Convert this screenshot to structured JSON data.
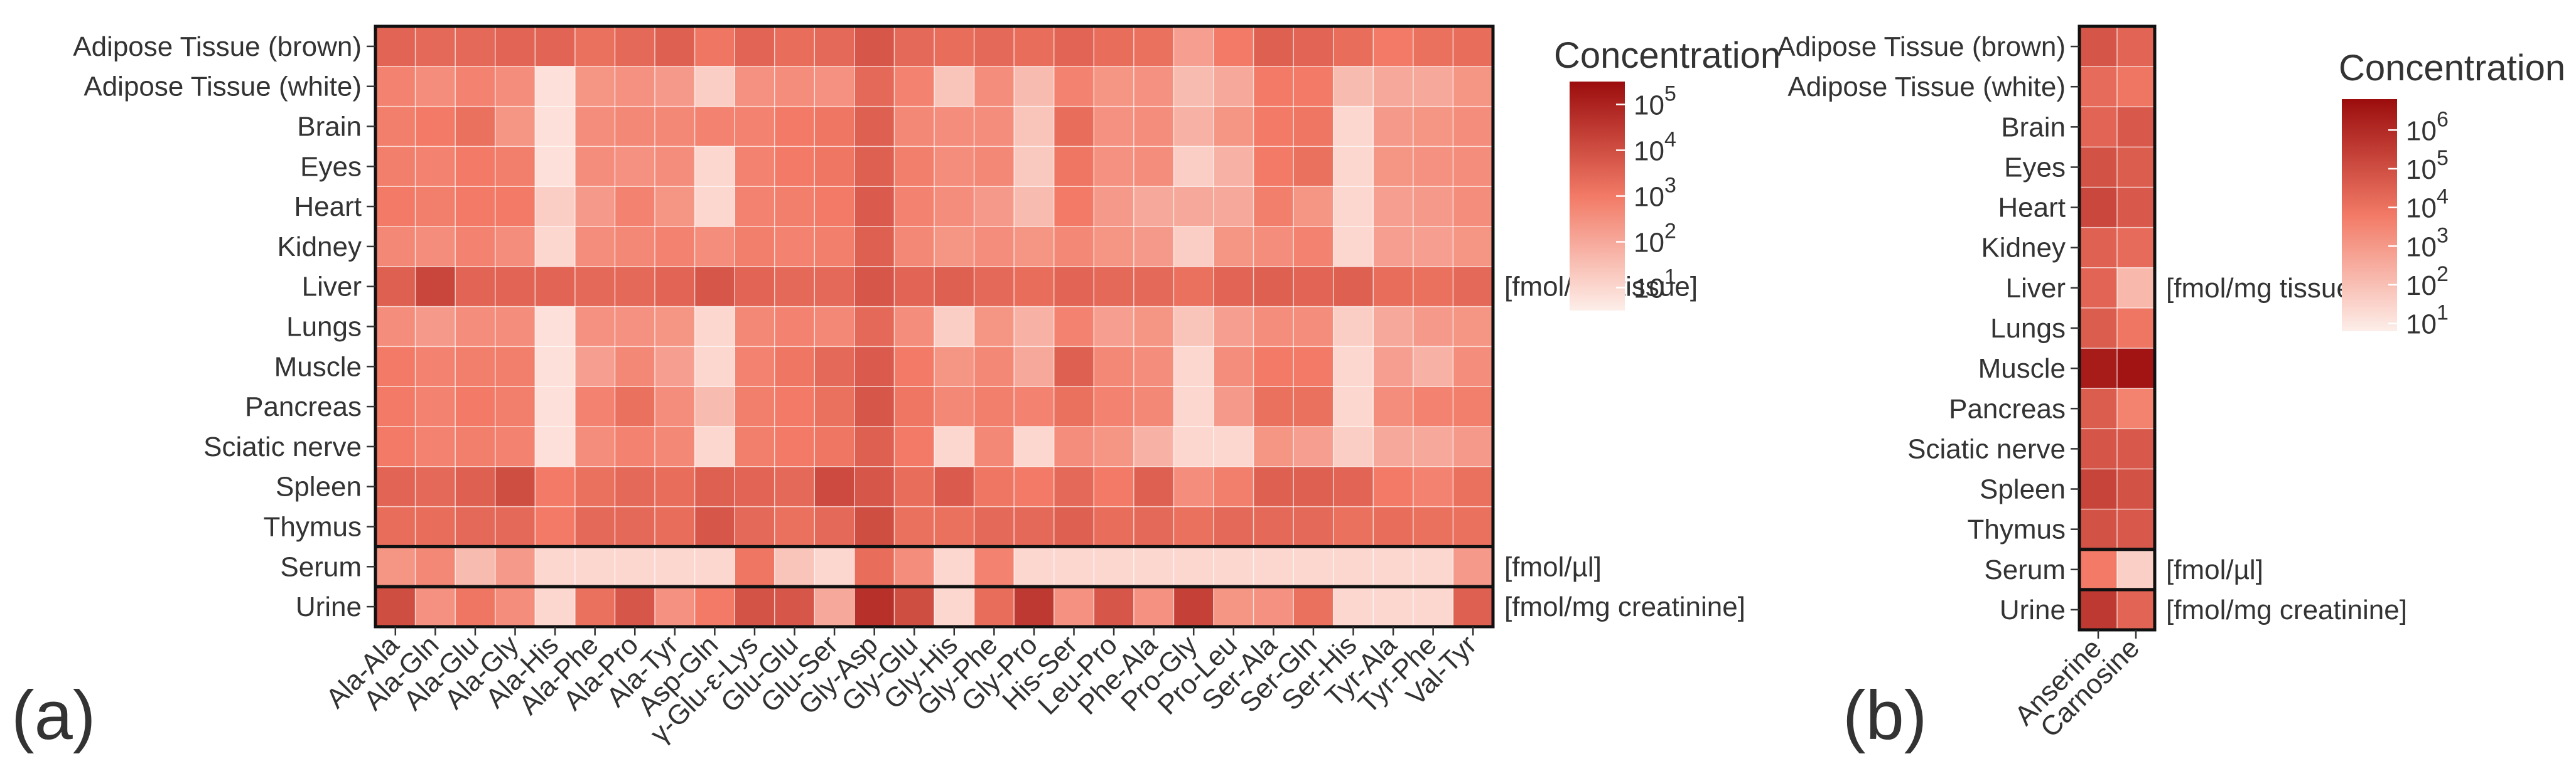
{
  "panel_labels": {
    "a": "(a)",
    "b": "(b)"
  },
  "colors": {
    "low": "#fdeee9",
    "mid": "#f27a66",
    "high": "#9b0d0d",
    "grid": "#ffffff",
    "frame": "#111111"
  },
  "chart_data": [
    {
      "type": "heatmap",
      "panel": "a",
      "title": "",
      "legend_title": "Concentration",
      "legend_ticks": [
        "10^1",
        "10^2",
        "10^3",
        "10^4",
        "10^5"
      ],
      "legend_range_log10": [
        0.5,
        5.5
      ],
      "rows": [
        "Adipose Tissue (brown)",
        "Adipose Tissue (white)",
        "Brain",
        "Eyes",
        "Heart",
        "Kidney",
        "Liver",
        "Lungs",
        "Muscle",
        "Pancreas",
        "Sciatic nerve",
        "Spleen",
        "Thymus",
        "Serum",
        "Urine"
      ],
      "columns": [
        "Ala-Ala",
        "Ala-Gln",
        "Ala-Glu",
        "Ala-Gly",
        "Ala-His",
        "Ala-Phe",
        "Ala-Pro",
        "Ala-Tyr",
        "Asp-Gln",
        "γ-Glu-ε-Lys",
        "Glu-Glu",
        "Glu-Ser",
        "Gly-Asp",
        "Gly-Glu",
        "Gly-His",
        "Gly-Phe",
        "Gly-Pro",
        "His-Ser",
        "Leu-Pro",
        "Phe-Ala",
        "Pro-Gly",
        "Pro-Leu",
        "Ser-Ala",
        "Ser-Gln",
        "Ser-His",
        "Tyr-Ala",
        "Tyr-Phe",
        "Val-Tyr"
      ],
      "unit_groups": [
        {
          "label": "[fmol/mg tissue]",
          "rows": [
            0,
            12
          ]
        },
        {
          "label": "[fmol/µl]",
          "rows": [
            13,
            13
          ]
        },
        {
          "label": "[fmol/mg creatinine]",
          "rows": [
            14,
            14
          ]
        }
      ],
      "values_log10": [
        [
          3.5,
          3.4,
          3.4,
          3.5,
          3.5,
          3.2,
          3.4,
          3.6,
          3.1,
          3.5,
          3.3,
          3.4,
          3.8,
          3.4,
          3.3,
          3.4,
          3.3,
          3.5,
          3.3,
          3.2,
          2.2,
          3.0,
          3.6,
          3.5,
          3.3,
          3.0,
          3.2,
          3.3
        ],
        [
          2.8,
          2.6,
          2.8,
          2.6,
          0.8,
          2.4,
          2.5,
          2.3,
          1.2,
          2.5,
          2.6,
          2.5,
          3.4,
          2.8,
          1.4,
          2.6,
          1.6,
          2.8,
          2.4,
          2.5,
          1.6,
          2.0,
          3.0,
          3.0,
          1.6,
          2.0,
          2.0,
          2.4
        ],
        [
          2.9,
          3.0,
          3.2,
          2.4,
          0.8,
          2.6,
          2.7,
          2.7,
          2.8,
          2.8,
          3.0,
          3.1,
          3.6,
          2.7,
          2.6,
          2.6,
          1.4,
          3.3,
          2.5,
          2.6,
          1.8,
          2.4,
          3.0,
          3.1,
          1.0,
          2.3,
          2.4,
          2.6
        ],
        [
          2.9,
          2.8,
          3.0,
          2.9,
          0.8,
          2.6,
          2.5,
          2.6,
          1.0,
          2.8,
          3.0,
          3.1,
          3.6,
          2.9,
          2.6,
          2.7,
          1.3,
          3.1,
          2.5,
          2.6,
          1.2,
          1.8,
          3.0,
          3.2,
          1.0,
          2.4,
          2.5,
          2.6
        ],
        [
          3.0,
          2.9,
          3.0,
          3.0,
          1.2,
          2.3,
          2.8,
          2.4,
          1.0,
          2.8,
          2.9,
          3.0,
          3.7,
          2.8,
          2.6,
          2.3,
          1.6,
          3.0,
          2.3,
          2.0,
          2.0,
          2.0,
          2.9,
          2.4,
          1.0,
          2.2,
          2.3,
          2.6
        ],
        [
          2.7,
          2.6,
          2.8,
          2.6,
          1.0,
          2.6,
          2.7,
          2.8,
          2.6,
          2.9,
          2.8,
          2.9,
          3.6,
          2.7,
          2.4,
          2.6,
          2.4,
          2.7,
          2.4,
          2.3,
          1.2,
          2.4,
          2.6,
          2.8,
          1.0,
          2.2,
          2.2,
          2.4
        ],
        [
          3.6,
          4.2,
          3.5,
          3.5,
          3.5,
          3.4,
          3.4,
          3.5,
          3.8,
          3.5,
          3.4,
          3.4,
          3.8,
          3.5,
          3.6,
          3.4,
          3.3,
          3.5,
          3.4,
          3.4,
          3.2,
          3.5,
          3.6,
          3.5,
          3.6,
          3.3,
          3.2,
          3.4
        ],
        [
          2.6,
          2.3,
          2.6,
          2.6,
          0.8,
          2.5,
          2.5,
          2.4,
          1.0,
          2.7,
          2.8,
          2.7,
          3.4,
          2.6,
          1.2,
          2.4,
          1.8,
          2.8,
          2.2,
          2.4,
          1.4,
          2.2,
          2.6,
          2.6,
          1.2,
          2.0,
          2.3,
          2.4
        ],
        [
          3.0,
          2.8,
          2.9,
          2.9,
          0.8,
          2.2,
          2.7,
          2.2,
          1.0,
          2.8,
          3.1,
          3.4,
          3.7,
          3.0,
          2.4,
          2.7,
          2.0,
          3.6,
          2.7,
          2.6,
          1.0,
          2.6,
          3.0,
          3.0,
          1.0,
          2.2,
          1.8,
          2.6
        ],
        [
          3.0,
          2.8,
          3.0,
          2.9,
          0.8,
          2.8,
          3.2,
          2.6,
          1.6,
          2.9,
          3.0,
          3.2,
          3.8,
          3.1,
          2.7,
          2.9,
          2.8,
          3.2,
          2.8,
          2.7,
          1.0,
          2.3,
          3.2,
          3.2,
          1.0,
          2.6,
          2.8,
          2.9
        ],
        [
          3.0,
          2.8,
          2.9,
          2.8,
          0.8,
          2.6,
          2.8,
          2.7,
          1.0,
          2.9,
          3.0,
          3.1,
          3.6,
          3.0,
          1.0,
          2.7,
          1.0,
          2.6,
          2.4,
          1.8,
          1.0,
          1.0,
          2.4,
          2.2,
          1.2,
          2.0,
          2.0,
          2.3
        ],
        [
          3.5,
          3.4,
          3.6,
          4.0,
          3.0,
          3.2,
          3.4,
          3.3,
          3.6,
          3.5,
          3.4,
          4.1,
          3.8,
          3.3,
          3.7,
          3.1,
          3.0,
          3.4,
          3.0,
          3.6,
          2.6,
          2.9,
          3.6,
          3.6,
          3.5,
          3.0,
          2.8,
          3.2
        ],
        [
          3.3,
          3.3,
          3.4,
          3.4,
          3.0,
          3.4,
          3.4,
          3.3,
          3.8,
          3.4,
          3.2,
          3.4,
          4.0,
          3.2,
          3.2,
          3.4,
          3.4,
          3.6,
          3.3,
          3.4,
          3.2,
          3.4,
          3.4,
          3.4,
          3.2,
          3.3,
          3.2,
          3.2
        ],
        [
          2.4,
          2.7,
          1.6,
          2.3,
          1.0,
          1.0,
          1.0,
          1.0,
          1.0,
          3.1,
          1.4,
          1.0,
          3.3,
          2.6,
          1.0,
          2.8,
          1.0,
          1.0,
          1.0,
          1.0,
          1.0,
          1.0,
          1.0,
          1.0,
          1.0,
          1.0,
          1.0,
          2.3
        ],
        [
          4.0,
          2.5,
          3.1,
          2.6,
          1.0,
          3.2,
          3.8,
          2.5,
          3.0,
          3.9,
          3.8,
          2.0,
          4.7,
          4.0,
          1.0,
          3.3,
          4.5,
          2.5,
          3.8,
          2.5,
          4.3,
          2.4,
          2.5,
          3.2,
          1.0,
          1.0,
          1.0,
          3.6
        ]
      ]
    },
    {
      "type": "heatmap",
      "panel": "b",
      "title": "",
      "legend_title": "Concentration",
      "legend_ticks": [
        "10^1",
        "10^2",
        "10^3",
        "10^4",
        "10^5",
        "10^6"
      ],
      "legend_range_log10": [
        0.8,
        6.8
      ],
      "rows": [
        "Adipose Tissue (brown)",
        "Adipose Tissue (white)",
        "Brain",
        "Eyes",
        "Heart",
        "Kidney",
        "Liver",
        "Lungs",
        "Muscle",
        "Pancreas",
        "Sciatic nerve",
        "Spleen",
        "Thymus",
        "Serum",
        "Urine"
      ],
      "columns": [
        "Anserine",
        "Carnosine"
      ],
      "unit_groups": [
        {
          "label": "[fmol/mg tissue]",
          "rows": [
            0,
            12
          ]
        },
        {
          "label": "[fmol/µl]",
          "rows": [
            13,
            13
          ]
        },
        {
          "label": "[fmol/mg creatinine]",
          "rows": [
            14,
            14
          ]
        }
      ],
      "values_log10": [
        [
          4.8,
          4.4
        ],
        [
          4.2,
          3.9
        ],
        [
          4.4,
          4.7
        ],
        [
          4.9,
          4.6
        ],
        [
          5.2,
          4.7
        ],
        [
          4.5,
          4.2
        ],
        [
          4.4,
          2.2
        ],
        [
          4.6,
          3.9
        ],
        [
          6.4,
          6.6
        ],
        [
          4.6,
          3.6
        ],
        [
          4.8,
          4.7
        ],
        [
          5.3,
          4.9
        ],
        [
          4.9,
          4.7
        ],
        [
          3.8,
          1.6
        ],
        [
          5.6,
          4.4
        ]
      ]
    }
  ]
}
